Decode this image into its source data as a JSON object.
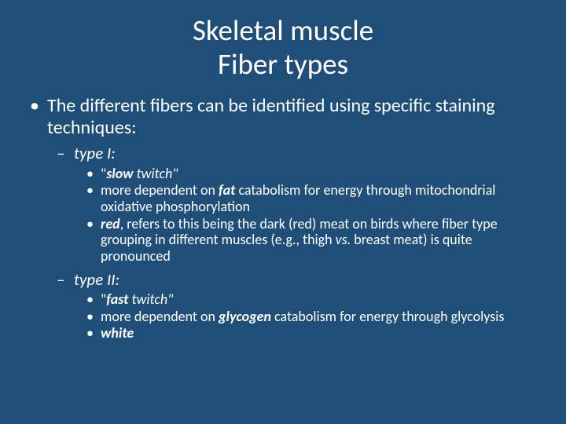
{
  "background_color": "#1f4e79",
  "text_color": "#ffffff",
  "font_family": "Calibri",
  "title": {
    "line1": "Skeletal muscle",
    "line2": "Fiber types",
    "fontsize": 37
  },
  "bullet_main": "The different fibers can be identified using specific staining techniques:",
  "type1": {
    "heading": "type I:",
    "item1_q1": "\"",
    "item1_bold": "slow",
    "item1_rest": " twitch\"",
    "item2_pre": "more dependent on ",
    "item2_bold": "fat",
    "item2_post": " catabolism for energy through mitochondrial oxidative phosphorylation",
    "item3_bold": "red",
    "item3_post": ", refers to this being the dark (red) meat on birds where fiber type grouping in different muscles (e.g., thigh ",
    "item3_vs": "vs.",
    "item3_post2": " breast meat) is quite pronounced"
  },
  "type2": {
    "heading": "type II:",
    "item1_q1": "\"",
    "item1_bold": "fast",
    "item1_rest": " twitch\"",
    "item2_pre": "more dependent on ",
    "item2_bold": "glycogen",
    "item2_post": " catabolism for energy through glycolysis",
    "item3_bold": "white"
  }
}
